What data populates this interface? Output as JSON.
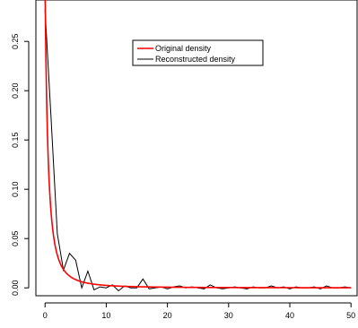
{
  "chart_data": {
    "type": "line",
    "title": "",
    "xlabel": "",
    "ylabel": "",
    "xlim": [
      -1.5,
      51
    ],
    "ylim": [
      -0.008,
      0.292
    ],
    "xticks": [
      0,
      10,
      20,
      30,
      40,
      50
    ],
    "xtick_labels": [
      "0",
      "10",
      "20",
      "30",
      "40",
      "50"
    ],
    "yticks": [
      0.0,
      0.05,
      0.1,
      0.15,
      0.2,
      0.25
    ],
    "ytick_labels": [
      "0.00",
      "0.05",
      "0.10",
      "0.15",
      "0.20",
      "0.25"
    ],
    "legend": {
      "position": "top-center"
    },
    "series": [
      {
        "name": "Original density",
        "color": "#ff0000",
        "curve": "decay",
        "x_range": [
          0,
          50
        ],
        "equation": "y = 0.3 / (1 + x)^2"
      },
      {
        "name": "Reconstructed density",
        "color": "#000000",
        "x": [
          0,
          1,
          2,
          3,
          4,
          5,
          6,
          7,
          8,
          9,
          10,
          11,
          12,
          13,
          14,
          15,
          16,
          17,
          18,
          19,
          20,
          21,
          22,
          23,
          24,
          25,
          26,
          27,
          28,
          29,
          30,
          31,
          32,
          33,
          34,
          35,
          36,
          37,
          38,
          39,
          40,
          41,
          42,
          43,
          44,
          45,
          46,
          47,
          48,
          49,
          50
        ],
        "values": [
          0.282,
          0.17,
          0.055,
          0.018,
          0.035,
          0.028,
          0.0,
          0.017,
          -0.002,
          0.001,
          0.0,
          0.003,
          -0.003,
          0.002,
          0.0,
          0.0,
          0.009,
          -0.001,
          0.0,
          0.001,
          -0.001,
          0.001,
          0.002,
          0.0,
          0.001,
          0.0,
          -0.001,
          0.003,
          0.0,
          -0.001,
          0.0,
          0.001,
          0.0,
          -0.001,
          0.001,
          0.0,
          0.0,
          0.002,
          0.0,
          0.001,
          -0.001,
          0.001,
          0.0,
          0.0,
          0.001,
          -0.001,
          0.002,
          0.0,
          0.0,
          0.001,
          0.0
        ]
      }
    ]
  }
}
